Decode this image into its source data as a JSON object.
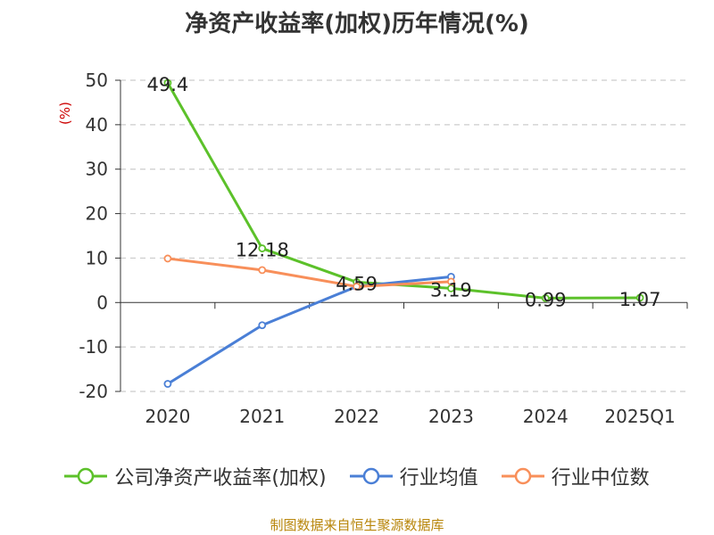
{
  "chart_data": {
    "type": "line",
    "title": "净资产收益率(加权)历年情况(%)",
    "ylabel": "(%)",
    "xlabel": "",
    "categories": [
      "2020",
      "2021",
      "2022",
      "2023",
      "2024",
      "2025Q1"
    ],
    "ylim": [
      -20,
      50
    ],
    "yticks": [
      50,
      40,
      30,
      20,
      10,
      0,
      -10,
      -20
    ],
    "grid": true,
    "legend_position": "bottom",
    "series": [
      {
        "name": "公司净资产收益率(加权)",
        "color": "#5cc12a",
        "values": [
          49.4,
          12.18,
          4.59,
          3.19,
          0.99,
          1.07
        ],
        "labels": [
          "49.4",
          "12.18",
          "4.59",
          "3.19",
          "0.99",
          "1.07"
        ]
      },
      {
        "name": "行业均值",
        "color": "#4a7fd6",
        "values": [
          -18.3,
          -5.1,
          3.6,
          5.8,
          null,
          null
        ]
      },
      {
        "name": "行业中位数",
        "color": "#f88f5a",
        "values": [
          9.9,
          7.3,
          3.6,
          4.7,
          null,
          null
        ]
      }
    ]
  },
  "footer": {
    "source": "制图数据来自恒生聚源数据库"
  }
}
